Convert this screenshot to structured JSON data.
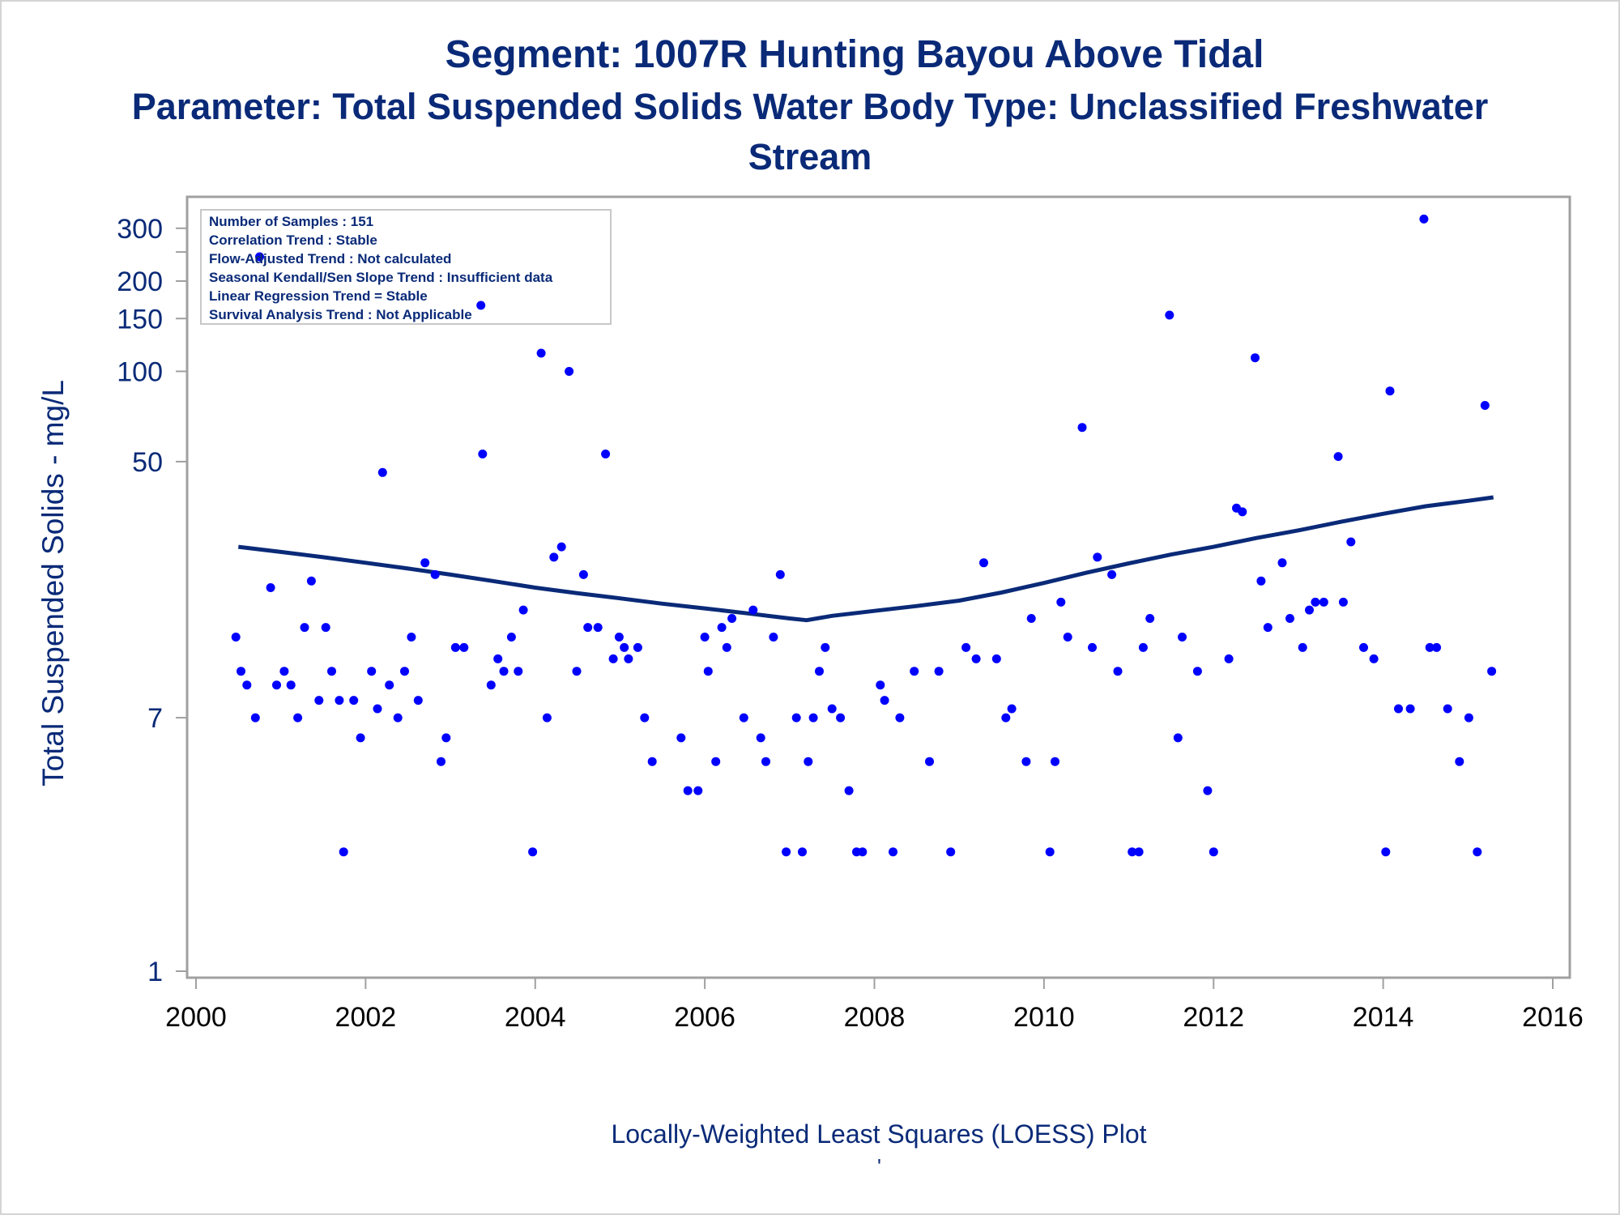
{
  "title": {
    "line1": "Segment: 1007R  Hunting Bayou Above Tidal",
    "line2": "Parameter: Total Suspended Solids   Water Body Type: Unclassified Freshwater",
    "line3": "Stream"
  },
  "footnote": "Locally-Weighted Least Squares (LOESS) Plot",
  "footnote_mark": "'",
  "colors": {
    "text": "#0a2a78",
    "points": "#0000ff",
    "loess_line": "#0a2a78",
    "frame": "#a0a0a0"
  },
  "chart_data": {
    "type": "scatter",
    "ylabel": "Total Suspended Solids - mg/L",
    "xlabel": "",
    "yscale": "log",
    "xlim": [
      2000,
      2016
    ],
    "ylim": [
      1,
      350
    ],
    "x_ticks": [
      "2000",
      "2002",
      "2004",
      "2006",
      "2008",
      "2010",
      "2012",
      "2014",
      "2016"
    ],
    "y_ticks": [
      {
        "value": 1,
        "label": "1"
      },
      {
        "value": 7,
        "label": "7"
      },
      {
        "value": 50,
        "label": "50"
      },
      {
        "value": 100,
        "label": "100"
      },
      {
        "value": 150,
        "label": "150"
      },
      {
        "value": 200,
        "label": "200"
      },
      {
        "value": 250,
        "label": ""
      },
      {
        "value": 300,
        "label": "300"
      }
    ],
    "legend_placement": "top-left",
    "legend": [
      "Number of Samples : 151",
      "Correlation Trend : Stable",
      "Flow-Adjusted Trend : Not calculated",
      "Seasonal Kendall/Sen Slope Trend : Insufficient data",
      "Linear Regression Trend = Stable",
      "Survival Analysis Trend : Not Applicable"
    ],
    "series": [
      {
        "kind": "points",
        "values": [
          [
            2000.47,
            13
          ],
          [
            2000.53,
            10
          ],
          [
            2000.6,
            9
          ],
          [
            2000.7,
            7
          ],
          [
            2000.75,
            241
          ],
          [
            2000.88,
            19
          ],
          [
            2000.95,
            9
          ],
          [
            2001.04,
            10
          ],
          [
            2001.12,
            9
          ],
          [
            2001.2,
            7
          ],
          [
            2001.28,
            14
          ],
          [
            2001.36,
            20
          ],
          [
            2001.45,
            8
          ],
          [
            2001.53,
            14
          ],
          [
            2001.6,
            10
          ],
          [
            2001.69,
            8
          ],
          [
            2001.74,
            2.5
          ],
          [
            2001.86,
            8
          ],
          [
            2001.94,
            6
          ],
          [
            2002.07,
            10
          ],
          [
            2002.14,
            7.5
          ],
          [
            2002.2,
            46
          ],
          [
            2002.28,
            9
          ],
          [
            2002.38,
            7
          ],
          [
            2002.46,
            10
          ],
          [
            2002.54,
            13
          ],
          [
            2002.62,
            8
          ],
          [
            2002.7,
            23
          ],
          [
            2002.82,
            21
          ],
          [
            2002.89,
            5
          ],
          [
            2002.95,
            6
          ],
          [
            2003.06,
            12
          ],
          [
            2003.16,
            12
          ],
          [
            2003.38,
            53
          ],
          [
            2003.36,
            166
          ],
          [
            2003.48,
            9
          ],
          [
            2003.56,
            11
          ],
          [
            2003.63,
            10
          ],
          [
            2003.72,
            13
          ],
          [
            2003.8,
            10
          ],
          [
            2003.86,
            16
          ],
          [
            2003.97,
            2.5
          ],
          [
            2004.07,
            115
          ],
          [
            2004.14,
            7
          ],
          [
            2004.22,
            24
          ],
          [
            2004.31,
            26
          ],
          [
            2004.4,
            100
          ],
          [
            2004.49,
            10
          ],
          [
            2004.57,
            21
          ],
          [
            2004.62,
            14
          ],
          [
            2004.74,
            14
          ],
          [
            2004.83,
            53
          ],
          [
            2004.92,
            11
          ],
          [
            2004.99,
            13
          ],
          [
            2005.05,
            12
          ],
          [
            2005.1,
            11
          ],
          [
            2005.21,
            12
          ],
          [
            2005.29,
            7
          ],
          [
            2005.38,
            5
          ],
          [
            2005.72,
            6
          ],
          [
            2005.8,
            4
          ],
          [
            2005.92,
            4
          ],
          [
            2006.0,
            13
          ],
          [
            2006.04,
            10
          ],
          [
            2006.13,
            5
          ],
          [
            2006.2,
            14
          ],
          [
            2006.26,
            12
          ],
          [
            2006.32,
            15
          ],
          [
            2006.46,
            7
          ],
          [
            2006.57,
            16
          ],
          [
            2006.66,
            6
          ],
          [
            2006.72,
            5
          ],
          [
            2006.81,
            13
          ],
          [
            2006.89,
            21
          ],
          [
            2006.96,
            2.5
          ],
          [
            2007.08,
            7
          ],
          [
            2007.15,
            2.5
          ],
          [
            2007.22,
            5
          ],
          [
            2007.28,
            7
          ],
          [
            2007.35,
            10
          ],
          [
            2007.42,
            12
          ],
          [
            2007.5,
            7.5
          ],
          [
            2007.6,
            7
          ],
          [
            2007.7,
            4
          ],
          [
            2007.79,
            2.5
          ],
          [
            2007.86,
            2.5
          ],
          [
            2008.07,
            9
          ],
          [
            2008.12,
            8
          ],
          [
            2008.22,
            2.5
          ],
          [
            2008.3,
            7
          ],
          [
            2008.47,
            10
          ],
          [
            2008.65,
            5
          ],
          [
            2008.76,
            10
          ],
          [
            2008.9,
            2.5
          ],
          [
            2009.08,
            12
          ],
          [
            2009.2,
            11
          ],
          [
            2009.29,
            23
          ],
          [
            2009.44,
            11
          ],
          [
            2009.55,
            7
          ],
          [
            2009.62,
            7.5
          ],
          [
            2009.79,
            5
          ],
          [
            2009.85,
            15
          ],
          [
            2010.07,
            2.5
          ],
          [
            2010.13,
            5
          ],
          [
            2010.2,
            17
          ],
          [
            2010.28,
            13
          ],
          [
            2010.45,
            65
          ],
          [
            2010.57,
            12
          ],
          [
            2010.63,
            24
          ],
          [
            2010.8,
            21
          ],
          [
            2010.87,
            10
          ],
          [
            2011.04,
            2.5
          ],
          [
            2011.12,
            2.5
          ],
          [
            2011.17,
            12
          ],
          [
            2011.25,
            15
          ],
          [
            2011.48,
            154
          ],
          [
            2011.58,
            6
          ],
          [
            2011.63,
            13
          ],
          [
            2011.81,
            10
          ],
          [
            2011.93,
            4
          ],
          [
            2012.0,
            2.5
          ],
          [
            2012.18,
            11
          ],
          [
            2012.27,
            35
          ],
          [
            2012.34,
            34
          ],
          [
            2012.49,
            111
          ],
          [
            2012.56,
            20
          ],
          [
            2012.64,
            14
          ],
          [
            2012.81,
            23
          ],
          [
            2012.9,
            15
          ],
          [
            2013.05,
            12
          ],
          [
            2013.13,
            16
          ],
          [
            2013.2,
            17
          ],
          [
            2013.3,
            17
          ],
          [
            2013.47,
            52
          ],
          [
            2013.53,
            17
          ],
          [
            2013.62,
            27
          ],
          [
            2013.77,
            12
          ],
          [
            2013.89,
            11
          ],
          [
            2014.03,
            2.5
          ],
          [
            2014.08,
            86
          ],
          [
            2014.18,
            7.5
          ],
          [
            2014.32,
            7.5
          ],
          [
            2014.48,
            322
          ],
          [
            2014.55,
            12
          ],
          [
            2014.63,
            12
          ],
          [
            2014.76,
            7.5
          ],
          [
            2014.9,
            5
          ],
          [
            2015.01,
            7
          ],
          [
            2015.11,
            2.5
          ],
          [
            2015.2,
            77
          ],
          [
            2015.28,
            10
          ]
        ]
      },
      {
        "kind": "loess",
        "values": [
          [
            2000.5,
            26
          ],
          [
            2001.0,
            25
          ],
          [
            2001.5,
            24
          ],
          [
            2002.0,
            23
          ],
          [
            2002.5,
            22
          ],
          [
            2003.0,
            21
          ],
          [
            2003.5,
            20
          ],
          [
            2004.0,
            19
          ],
          [
            2004.5,
            18.2
          ],
          [
            2005.0,
            17.5
          ],
          [
            2005.5,
            16.8
          ],
          [
            2006.0,
            16.2
          ],
          [
            2006.5,
            15.6
          ],
          [
            2007.0,
            15
          ],
          [
            2007.2,
            14.8
          ],
          [
            2007.5,
            15.3
          ],
          [
            2008.0,
            15.9
          ],
          [
            2008.5,
            16.5
          ],
          [
            2009.0,
            17.2
          ],
          [
            2009.5,
            18.3
          ],
          [
            2010.0,
            19.7
          ],
          [
            2010.5,
            21.3
          ],
          [
            2011.0,
            22.9
          ],
          [
            2011.5,
            24.5
          ],
          [
            2012.0,
            26
          ],
          [
            2012.5,
            27.8
          ],
          [
            2013.0,
            29.5
          ],
          [
            2013.5,
            31.5
          ],
          [
            2014.0,
            33.5
          ],
          [
            2014.5,
            35.5
          ],
          [
            2015.0,
            37
          ],
          [
            2015.3,
            38
          ]
        ]
      }
    ]
  }
}
